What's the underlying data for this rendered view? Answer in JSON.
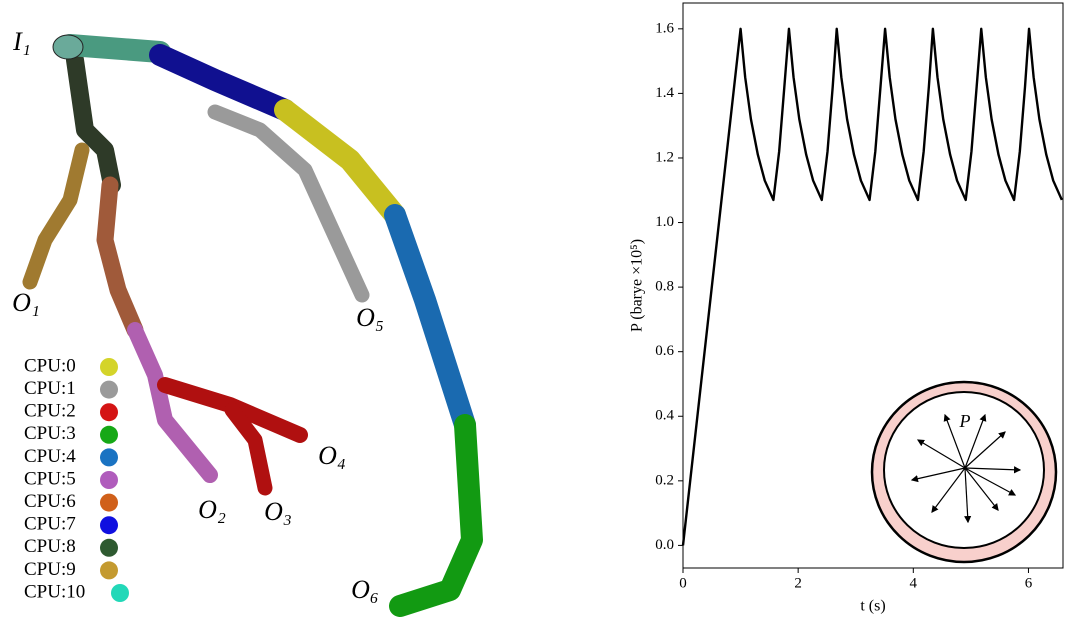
{
  "chart_data": {
    "type": "line",
    "x_label": "t (s)",
    "y_label": "P (barye ×10⁵)",
    "annotation": "P",
    "xlim": [
      0,
      6.6
    ],
    "ylim": [
      -0.07,
      1.68
    ],
    "xticks": [
      0,
      2,
      4,
      6
    ],
    "yticks": [
      {
        "value": 0,
        "label": "0.0"
      },
      0.2,
      0.4,
      0.6,
      0.8,
      {
        "value": 1,
        "label": "1.0"
      },
      1.2,
      1.4,
      1.6
    ],
    "series": [
      {
        "color": "#000000",
        "x": [
          0,
          1.0,
          1.08,
          1.18,
          1.3,
          1.42,
          1.57,
          1.67,
          1.76,
          1.84,
          1.92,
          2.02,
          2.14,
          2.26,
          2.41,
          2.51,
          2.6,
          2.67,
          2.75,
          2.85,
          2.97,
          3.09,
          3.24,
          3.34,
          3.43,
          3.51,
          3.59,
          3.69,
          3.81,
          3.93,
          4.08,
          4.18,
          4.27,
          4.34,
          4.42,
          4.52,
          4.64,
          4.76,
          4.91,
          5.01,
          5.1,
          5.18,
          5.26,
          5.36,
          5.48,
          5.6,
          5.75,
          5.85,
          5.94,
          6.01,
          6.09,
          6.19,
          6.31,
          6.43,
          6.58
        ],
        "values": [
          0,
          1.6,
          1.45,
          1.32,
          1.21,
          1.13,
          1.07,
          1.22,
          1.42,
          1.6,
          1.45,
          1.32,
          1.21,
          1.13,
          1.07,
          1.22,
          1.42,
          1.6,
          1.45,
          1.32,
          1.21,
          1.13,
          1.07,
          1.22,
          1.42,
          1.6,
          1.45,
          1.32,
          1.21,
          1.13,
          1.07,
          1.22,
          1.42,
          1.6,
          1.45,
          1.32,
          1.21,
          1.13,
          1.07,
          1.22,
          1.42,
          1.6,
          1.45,
          1.32,
          1.21,
          1.13,
          1.07,
          1.22,
          1.42,
          1.6,
          1.45,
          1.32,
          1.21,
          1.13,
          1.07
        ]
      }
    ]
  },
  "diagram": {
    "labels": [
      "I₁",
      "O₁",
      "O₂",
      "O₃",
      "O₄",
      "O₅",
      "O₆"
    ],
    "legend": [
      {
        "label": "CPU:0",
        "color": "#d4d42a"
      },
      {
        "label": "CPU:1",
        "color": "#9a9a9a"
      },
      {
        "label": "CPU:2",
        "color": "#d41414"
      },
      {
        "label": "CPU:3",
        "color": "#16a816"
      },
      {
        "label": "CPU:4",
        "color": "#1a73c2"
      },
      {
        "label": "CPU:5",
        "color": "#b05cbc"
      },
      {
        "label": "CPU:6",
        "color": "#d0601a"
      },
      {
        "label": "CPU:7",
        "color": "#1010e0"
      },
      {
        "label": "CPU:8",
        "color": "#2e5a30"
      },
      {
        "label": "CPU:9",
        "color": "#c49a30"
      },
      {
        "label": "CPU:10",
        "color": "#22d8b8"
      }
    ]
  }
}
